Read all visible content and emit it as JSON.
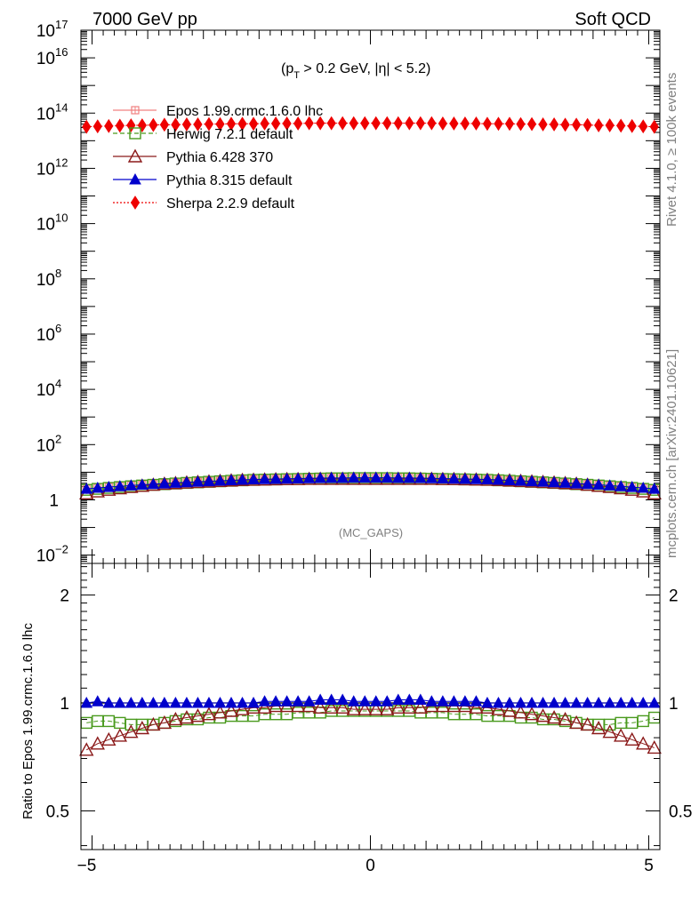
{
  "header": {
    "left": "7000 GeV pp",
    "right": "Soft QCD"
  },
  "annotation": {
    "cut_p": "(p",
    "cut_sub": "T",
    "cut_rest": " > 0.2 GeV, |η| < 5.2)",
    "analysis": "(MC_GAPS)"
  },
  "side": {
    "rivet": "Rivet 4.1.0, ≥ 100k events",
    "mcplots": "mcplots.cern.ch [arXiv:2401.10621]"
  },
  "chart_data": [
    {
      "type": "line",
      "panel": "main",
      "yscale": "log",
      "ylim": [
        0.005,
        1e+17
      ],
      "xlim": [
        -5.2,
        5.2
      ],
      "yticks": [
        {
          "base": "10",
          "exp": "17"
        },
        {
          "base": "10",
          "exp": "16"
        },
        {
          "base": "10",
          "exp": "14"
        },
        {
          "base": "10",
          "exp": "12"
        },
        {
          "base": "10",
          "exp": "10"
        },
        {
          "base": "10",
          "exp": "8"
        },
        {
          "base": "10",
          "exp": "6"
        },
        {
          "base": "10",
          "exp": "4"
        },
        {
          "base": "10",
          "exp": "2"
        },
        {
          "base": "1",
          "exp": ""
        },
        {
          "base": "10",
          "exp": "−2"
        }
      ],
      "x": [
        -5.1,
        -4.9,
        -4.7,
        -4.5,
        -4.3,
        -4.1,
        -3.9,
        -3.7,
        -3.5,
        -3.3,
        -3.1,
        -2.9,
        -2.7,
        -2.5,
        -2.3,
        -2.1,
        -1.9,
        -1.7,
        -1.5,
        -1.3,
        -1.1,
        -0.9,
        -0.7,
        -0.5,
        -0.3,
        -0.1,
        0.1,
        0.3,
        0.5,
        0.7,
        0.9,
        1.1,
        1.3,
        1.5,
        1.7,
        1.9,
        2.1,
        2.3,
        2.5,
        2.7,
        2.9,
        3.1,
        3.3,
        3.5,
        3.7,
        3.9,
        4.1,
        4.3,
        4.5,
        4.7,
        4.9,
        5.1
      ],
      "series": [
        {
          "name": "Epos 1.99.crmc.1.6.0 lhc",
          "color": "#f08080",
          "marker": "open-cross-square",
          "values": [
            2.5,
            2.7,
            2.9,
            3.1,
            3.3,
            3.5,
            3.7,
            3.9,
            4.1,
            4.3,
            4.5,
            4.7,
            4.9,
            5.1,
            5.3,
            5.5,
            5.6,
            5.7,
            5.8,
            5.9,
            6.0,
            6.1,
            6.2,
            6.2,
            6.3,
            6.3,
            6.3,
            6.3,
            6.2,
            6.2,
            6.1,
            6.0,
            5.9,
            5.8,
            5.7,
            5.6,
            5.5,
            5.3,
            5.1,
            4.9,
            4.7,
            4.5,
            4.3,
            4.1,
            3.9,
            3.7,
            3.5,
            3.3,
            3.1,
            2.9,
            2.7,
            2.5
          ]
        },
        {
          "name": "Herwig 7.2.1 default",
          "color": "#4a9a1e",
          "marker": "open-square",
          "values": [
            2.3,
            2.5,
            2.7,
            2.9,
            3.1,
            3.3,
            3.5,
            3.7,
            3.9,
            4.1,
            4.3,
            4.5,
            4.7,
            4.9,
            5.1,
            5.3,
            5.4,
            5.5,
            5.6,
            5.7,
            5.8,
            5.9,
            6.0,
            6.0,
            6.1,
            6.1,
            6.1,
            6.1,
            6.0,
            6.0,
            5.9,
            5.8,
            5.7,
            5.6,
            5.5,
            5.4,
            5.3,
            5.1,
            4.9,
            4.7,
            4.5,
            4.3,
            4.1,
            3.9,
            3.7,
            3.5,
            3.3,
            3.1,
            2.9,
            2.7,
            2.5,
            2.3
          ]
        },
        {
          "name": "Pythia 6.428 370",
          "color": "#8b1a1a",
          "marker": "open-triangle",
          "values": [
            1.7,
            2.0,
            2.3,
            2.6,
            2.9,
            3.2,
            3.5,
            3.8,
            4.0,
            4.2,
            4.4,
            4.6,
            4.8,
            5.0,
            5.2,
            5.3,
            5.4,
            5.5,
            5.6,
            5.6,
            5.7,
            5.7,
            5.7,
            5.7,
            5.7,
            5.7,
            5.7,
            5.7,
            5.7,
            5.7,
            5.7,
            5.7,
            5.6,
            5.6,
            5.5,
            5.4,
            5.3,
            5.2,
            5.0,
            4.8,
            4.6,
            4.4,
            4.2,
            4.0,
            3.8,
            3.5,
            3.2,
            2.9,
            2.6,
            2.3,
            2.0,
            1.7
          ]
        },
        {
          "name": "Pythia 8.315 default",
          "color": "#0000cc",
          "marker": "filled-triangle",
          "values": [
            2.5,
            2.7,
            2.9,
            3.1,
            3.3,
            3.5,
            3.7,
            3.9,
            4.1,
            4.3,
            4.5,
            4.7,
            4.9,
            5.1,
            5.3,
            5.5,
            5.6,
            5.7,
            5.8,
            5.9,
            6.0,
            6.1,
            6.2,
            6.2,
            6.3,
            6.3,
            6.3,
            6.3,
            6.2,
            6.2,
            6.1,
            6.0,
            5.9,
            5.8,
            5.7,
            5.6,
            5.5,
            5.3,
            5.1,
            4.9,
            4.7,
            4.5,
            4.3,
            4.1,
            3.9,
            3.7,
            3.5,
            3.3,
            3.1,
            2.9,
            2.7,
            2.5
          ]
        },
        {
          "name": "Sherpa 2.2.9 default",
          "color": "#ee0000",
          "marker": "filled-diamond",
          "values": [
            32000000000000.0,
            33000000000000.0,
            34000000000000.0,
            35000000000000.0,
            36000000000000.0,
            36000000000000.0,
            37000000000000.0,
            38000000000000.0,
            38000000000000.0,
            39000000000000.0,
            39000000000000.0,
            40000000000000.0,
            40000000000000.0,
            41000000000000.0,
            41000000000000.0,
            41000000000000.0,
            42000000000000.0,
            42000000000000.0,
            42000000000000.0,
            42000000000000.0,
            43000000000000.0,
            43000000000000.0,
            43000000000000.0,
            43000000000000.0,
            43000000000000.0,
            43000000000000.0,
            43000000000000.0,
            43000000000000.0,
            43000000000000.0,
            43000000000000.0,
            43000000000000.0,
            43000000000000.0,
            42000000000000.0,
            42000000000000.0,
            42000000000000.0,
            42000000000000.0,
            41000000000000.0,
            41000000000000.0,
            41000000000000.0,
            40000000000000.0,
            40000000000000.0,
            39000000000000.0,
            39000000000000.0,
            38000000000000.0,
            38000000000000.0,
            37000000000000.0,
            36000000000000.0,
            36000000000000.0,
            35000000000000.0,
            34000000000000.0,
            33000000000000.0,
            32000000000000.0
          ]
        }
      ]
    },
    {
      "type": "line",
      "panel": "ratio",
      "ylabel": "Ratio to Epos 1.99.crmc.1.6.0 lhc",
      "yscale": "log",
      "ylim": [
        0.39,
        2.45
      ],
      "xlim": [
        -5.2,
        5.2
      ],
      "yticks": [
        "0.5",
        "1",
        "2"
      ],
      "xticks": [
        "−5",
        "0",
        "5"
      ],
      "x": [
        -5.1,
        -4.9,
        -4.7,
        -4.5,
        -4.3,
        -4.1,
        -3.9,
        -3.7,
        -3.5,
        -3.3,
        -3.1,
        -2.9,
        -2.7,
        -2.5,
        -2.3,
        -2.1,
        -1.9,
        -1.7,
        -1.5,
        -1.3,
        -1.1,
        -0.9,
        -0.7,
        -0.5,
        -0.3,
        -0.1,
        0.1,
        0.3,
        0.5,
        0.7,
        0.9,
        1.1,
        1.3,
        1.5,
        1.7,
        1.9,
        2.1,
        2.3,
        2.5,
        2.7,
        2.9,
        3.1,
        3.3,
        3.5,
        3.7,
        3.9,
        4.1,
        4.3,
        4.5,
        4.7,
        4.9,
        5.1
      ],
      "series": [
        {
          "name": "Herwig 7.2.1 default",
          "color": "#4a9a1e",
          "marker": "open-square",
          "values": [
            0.88,
            0.89,
            0.89,
            0.88,
            0.87,
            0.87,
            0.87,
            0.88,
            0.89,
            0.9,
            0.9,
            0.91,
            0.91,
            0.92,
            0.92,
            0.92,
            0.93,
            0.93,
            0.93,
            0.94,
            0.94,
            0.94,
            0.95,
            0.95,
            0.95,
            0.95,
            0.95,
            0.95,
            0.95,
            0.95,
            0.94,
            0.94,
            0.94,
            0.93,
            0.93,
            0.93,
            0.92,
            0.92,
            0.92,
            0.91,
            0.91,
            0.9,
            0.9,
            0.89,
            0.88,
            0.87,
            0.87,
            0.87,
            0.88,
            0.88,
            0.89,
            0.91
          ]
        },
        {
          "name": "Pythia 6.428 370",
          "color": "#8b1a1a",
          "marker": "open-triangle",
          "values": [
            0.74,
            0.77,
            0.79,
            0.81,
            0.83,
            0.85,
            0.87,
            0.88,
            0.9,
            0.91,
            0.92,
            0.93,
            0.94,
            0.95,
            0.96,
            0.97,
            0.97,
            0.98,
            0.98,
            0.98,
            0.98,
            0.97,
            0.97,
            0.97,
            0.96,
            0.96,
            0.96,
            0.96,
            0.97,
            0.97,
            0.97,
            0.98,
            0.98,
            0.98,
            0.98,
            0.97,
            0.97,
            0.96,
            0.95,
            0.94,
            0.93,
            0.92,
            0.91,
            0.9,
            0.88,
            0.87,
            0.85,
            0.83,
            0.81,
            0.79,
            0.77,
            0.75
          ]
        },
        {
          "name": "Pythia 8.315 default",
          "color": "#0000cc",
          "marker": "filled-triangle",
          "values": [
            1.0,
            1.01,
            1.0,
            1.0,
            1.0,
            1.0,
            1.0,
            1.0,
            1.0,
            1.0,
            1.0,
            1.0,
            1.0,
            1.0,
            1.0,
            1.0,
            1.01,
            1.01,
            1.01,
            1.01,
            1.01,
            1.02,
            1.02,
            1.02,
            1.01,
            1.01,
            1.01,
            1.01,
            1.02,
            1.02,
            1.02,
            1.01,
            1.01,
            1.01,
            1.01,
            1.01,
            1.0,
            1.0,
            1.0,
            1.0,
            1.0,
            1.0,
            1.0,
            1.0,
            1.0,
            1.0,
            1.0,
            1.0,
            1.0,
            1.0,
            1.0,
            1.0
          ]
        }
      ]
    }
  ]
}
